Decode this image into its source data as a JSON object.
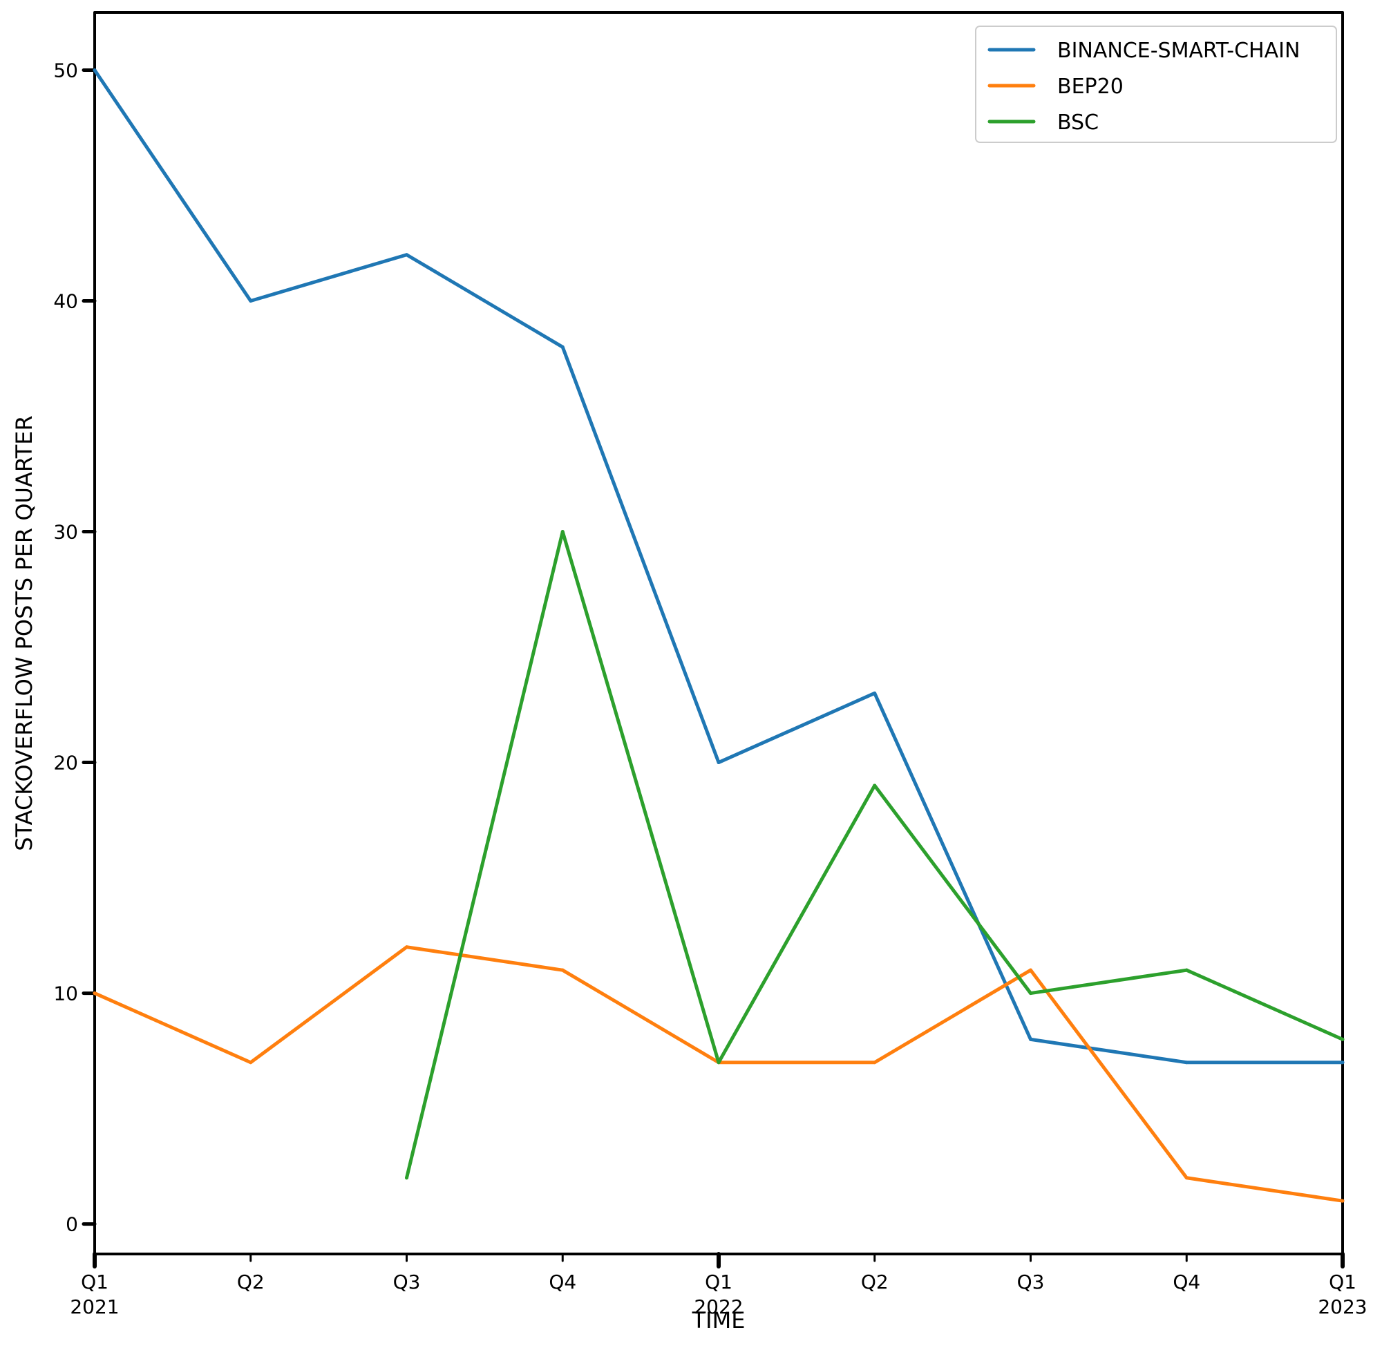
{
  "chart_data": {
    "type": "line",
    "title": "",
    "xlabel": "TIME",
    "ylabel": "STACKOVERFLOW POSTS PER QUARTER",
    "x": [
      "2021-Q1",
      "2021-Q2",
      "2021-Q3",
      "2021-Q4",
      "2022-Q1",
      "2022-Q2",
      "2022-Q3",
      "2022-Q4",
      "2023-Q1"
    ],
    "xlim": [
      0,
      8
    ],
    "ylim": [
      -1.3,
      52.5
    ],
    "yticks": [
      "0",
      "10",
      "20",
      "30",
      "40",
      "50"
    ],
    "ytick_values": [
      0,
      10,
      20,
      30,
      40,
      50
    ],
    "xticks": [
      {
        "quarter": "Q1",
        "year": "2021"
      },
      {
        "quarter": "Q2",
        "year": ""
      },
      {
        "quarter": "Q3",
        "year": ""
      },
      {
        "quarter": "Q4",
        "year": ""
      },
      {
        "quarter": "Q1",
        "year": "2022"
      },
      {
        "quarter": "Q2",
        "year": ""
      },
      {
        "quarter": "Q3",
        "year": ""
      },
      {
        "quarter": "Q4",
        "year": ""
      },
      {
        "quarter": "Q1",
        "year": "2023"
      }
    ],
    "legend_position": "top-right",
    "grid": false,
    "series": [
      {
        "name": "BINANCE-SMART-CHAIN",
        "color": "#1f77b4",
        "values": [
          50,
          40,
          42,
          38,
          20,
          23,
          8,
          7,
          7
        ]
      },
      {
        "name": "BEP20",
        "color": "#ff7f0e",
        "values": [
          10,
          7,
          12,
          11,
          7,
          7,
          11,
          2,
          1
        ]
      },
      {
        "name": "BSC",
        "color": "#2ca02c",
        "values": [
          null,
          null,
          2,
          30,
          7,
          19,
          10,
          11,
          8
        ]
      }
    ]
  }
}
